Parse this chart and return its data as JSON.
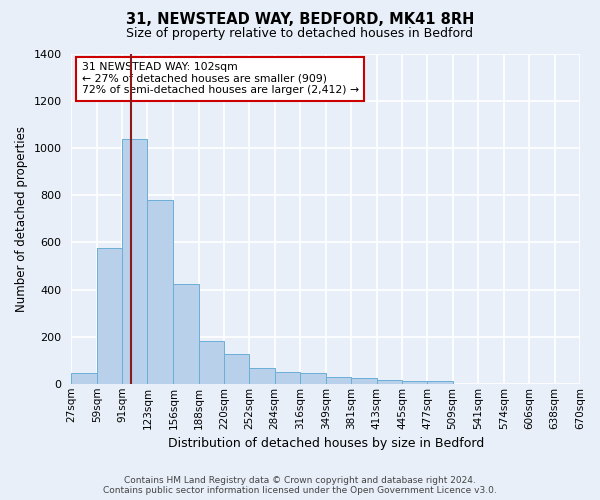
{
  "title": "31, NEWSTEAD WAY, BEDFORD, MK41 8RH",
  "subtitle": "Size of property relative to detached houses in Bedford",
  "xlabel": "Distribution of detached houses by size in Bedford",
  "ylabel": "Number of detached properties",
  "footnote1": "Contains HM Land Registry data © Crown copyright and database right 2024.",
  "footnote2": "Contains public sector information licensed under the Open Government Licence v3.0.",
  "annotation_line1": "31 NEWSTEAD WAY: 102sqm",
  "annotation_line2": "← 27% of detached houses are smaller (909)",
  "annotation_line3": "72% of semi-detached houses are larger (2,412) →",
  "bar_edges": [
    27,
    59,
    91,
    123,
    156,
    188,
    220,
    252,
    284,
    316,
    349,
    381,
    413,
    445,
    477,
    509,
    541,
    574,
    606,
    638,
    670
  ],
  "bar_heights": [
    45,
    575,
    1040,
    780,
    425,
    182,
    125,
    65,
    50,
    47,
    28,
    25,
    18,
    10,
    10,
    0,
    0,
    0,
    0,
    0
  ],
  "bar_color": "#b8d0ea",
  "bar_edge_color": "#6aaed6",
  "vline_x": 102,
  "vline_color": "#8b1a1a",
  "annotation_box_color": "#ffffff",
  "annotation_box_edge": "#cc0000",
  "bg_color": "#e8eff8",
  "grid_color": "#ffffff",
  "ylim": [
    0,
    1400
  ],
  "yticks": [
    0,
    200,
    400,
    600,
    800,
    1000,
    1200,
    1400
  ]
}
